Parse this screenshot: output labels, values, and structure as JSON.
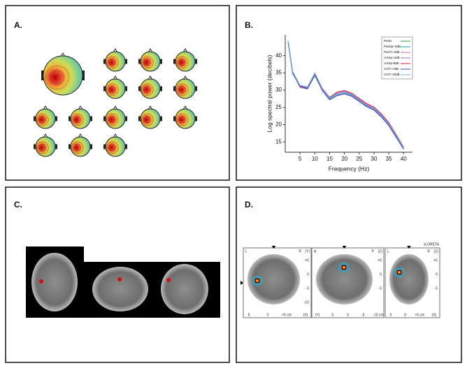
{
  "panels": [
    "A.",
    "B.",
    "C.",
    "D."
  ],
  "chart_data": {
    "type": "line",
    "xlabel": "Frequency (Hz)",
    "ylabel": "Log spectral power (decibels)",
    "x": [
      1,
      2.5,
      5,
      7.5,
      10,
      12.5,
      15,
      17.5,
      20,
      22.5,
      25,
      27.5,
      30,
      32.5,
      35,
      37.5,
      40
    ],
    "xlim": [
      0,
      43
    ],
    "ylim": [
      12,
      46
    ],
    "xticks": [
      5,
      10,
      15,
      20,
      25,
      30,
      35,
      40
    ],
    "yticks": [
      15,
      20,
      25,
      30,
      35,
      40
    ],
    "legend": "upper right",
    "series": [
      {
        "name": "PasN",
        "color": "#2e9e3a",
        "values": [
          44,
          35,
          31,
          30.4,
          34.2,
          30,
          27.4,
          28.5,
          29,
          28.3,
          26.8,
          25.3,
          24.3,
          22.3,
          19.8,
          16.4,
          13
        ]
      },
      {
        "name": "PasSp+4dB",
        "color": "#1aa6a0",
        "values": [
          43.6,
          34.8,
          31.2,
          30.6,
          34.6,
          30.2,
          27.6,
          28.9,
          29.4,
          28.6,
          27.1,
          25.6,
          24.6,
          22.6,
          20.1,
          16.6,
          13.2
        ]
      },
      {
        "name": "PasTr+4dB",
        "color": "#e05ab4",
        "values": [
          44.2,
          35.2,
          30.8,
          30.3,
          34.8,
          30.4,
          27.8,
          29.2,
          29.7,
          28.9,
          27.4,
          25.9,
          24.9,
          22.9,
          20.4,
          16.9,
          13.4
        ]
      },
      {
        "name": "ActSp+4dB",
        "color": "#9a6fc8",
        "values": [
          43.8,
          35.1,
          31.1,
          30.5,
          34.4,
          30.1,
          27.3,
          28.6,
          29.1,
          28.4,
          26.9,
          25.4,
          24.4,
          22.4,
          19.9,
          16.5,
          13.1
        ]
      },
      {
        "name": "ActSp-8dB",
        "color": "#d8262e",
        "values": [
          44.1,
          35.3,
          31.3,
          30.8,
          35,
          30.5,
          27.9,
          29.4,
          29.9,
          29.1,
          27.6,
          26.1,
          25.1,
          23.1,
          20.6,
          17.1,
          13.5
        ]
      },
      {
        "name": "ActTr+4dB",
        "color": "#2a4fd6",
        "values": [
          43.9,
          35,
          31,
          30.4,
          34.3,
          29.9,
          27.2,
          28.4,
          28.9,
          28.2,
          26.7,
          25.2,
          24.2,
          22.2,
          19.7,
          16.3,
          12.9
        ]
      },
      {
        "name": "ActTr-18dB",
        "color": "#6fb6e8",
        "values": [
          44.3,
          35.4,
          31.4,
          30.9,
          34.9,
          30.3,
          27.7,
          29,
          29.5,
          28.8,
          27.2,
          25.7,
          24.7,
          22.7,
          20.2,
          16.8,
          13.3
        ]
      }
    ]
  },
  "loreta": {
    "title": "sLORETA",
    "views": [
      {
        "left": "L",
        "right": "R",
        "axis": "(Y)",
        "bottom": [
          "5",
          "0",
          "+5 cm",
          "(X)"
        ],
        "side": [
          "+5",
          "0",
          "-5",
          "-10"
        ]
      },
      {
        "left": "A",
        "right": "P",
        "axis": "(Z)",
        "bottom": [
          "(Y)",
          "5",
          "0",
          "-5",
          "-10 cm"
        ],
        "side": [
          "+5",
          "0",
          "-5"
        ]
      },
      {
        "left": "L",
        "right": "R",
        "axis": "(Z)",
        "bottom": [
          "5",
          "0",
          "+5 cm",
          "(X)"
        ],
        "side": [
          "+5",
          "0",
          "-5"
        ]
      }
    ]
  }
}
